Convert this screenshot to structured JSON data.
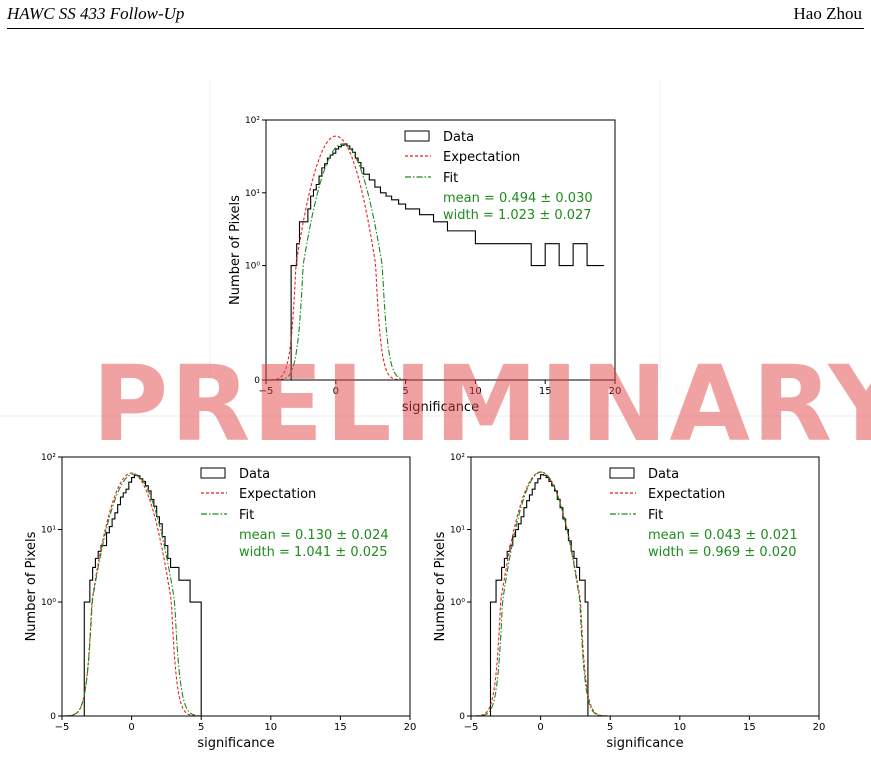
{
  "header": {
    "title": "HAWC SS 433 Follow-Up",
    "author": "Hao Zhou"
  },
  "watermark": "PRELIMINARY",
  "colors": {
    "data": "#000000",
    "expectation": "#e8201c",
    "fit": "#1a8a1a",
    "stats": "#1e8c1e"
  },
  "chart_data": [
    {
      "type": "histogram",
      "xlabel": "significance",
      "ylabel": "Number of Pixels",
      "xlim": [
        -5,
        20
      ],
      "ylim": [
        0,
        100
      ],
      "yscale": "symlog",
      "xticks": [
        "−5",
        "0",
        "5",
        "10",
        "15",
        "20"
      ],
      "yticks": [
        "0",
        "10⁰",
        "10¹",
        "10²"
      ],
      "legend": [
        "Data",
        "Expectation",
        "Fit"
      ],
      "legend_position": "upper-right",
      "stats": [
        "mean = 0.494 ± 0.030",
        "width = 1.023 ± 0.027"
      ],
      "expectation": {
        "mean": 0,
        "width": 1,
        "peak": 60
      },
      "fit": {
        "mean": 0.494,
        "width": 1.023,
        "peak": 47
      },
      "data_points": [
        [
          -3.4,
          0
        ],
        [
          -3.2,
          1
        ],
        [
          -3.0,
          1
        ],
        [
          -2.8,
          2
        ],
        [
          -2.6,
          4
        ],
        [
          -2.4,
          4
        ],
        [
          -2.2,
          4
        ],
        [
          -2.0,
          6
        ],
        [
          -1.8,
          9
        ],
        [
          -1.6,
          11
        ],
        [
          -1.4,
          13
        ],
        [
          -1.2,
          17
        ],
        [
          -1.0,
          22
        ],
        [
          -0.8,
          25
        ],
        [
          -0.6,
          30
        ],
        [
          -0.4,
          33
        ],
        [
          -0.2,
          35
        ],
        [
          0.0,
          40
        ],
        [
          0.2,
          43
        ],
        [
          0.4,
          45
        ],
        [
          0.6,
          47
        ],
        [
          0.8,
          44
        ],
        [
          1.0,
          40
        ],
        [
          1.2,
          36
        ],
        [
          1.4,
          30
        ],
        [
          1.6,
          26
        ],
        [
          1.8,
          22
        ],
        [
          2.0,
          18
        ],
        [
          2.4,
          15
        ],
        [
          2.8,
          12
        ],
        [
          3.2,
          10
        ],
        [
          3.6,
          9
        ],
        [
          4.0,
          8
        ],
        [
          4.5,
          7
        ],
        [
          5.0,
          6
        ],
        [
          6.0,
          5
        ],
        [
          7.0,
          4
        ],
        [
          8.0,
          3
        ],
        [
          9.0,
          3
        ],
        [
          10.0,
          2
        ],
        [
          11.0,
          2
        ],
        [
          12.0,
          2
        ],
        [
          13.0,
          2
        ],
        [
          14.0,
          1
        ],
        [
          15.0,
          2
        ],
        [
          16.0,
          1
        ],
        [
          17.0,
          2
        ],
        [
          18.0,
          1
        ],
        [
          19.0,
          1
        ]
      ]
    },
    {
      "type": "histogram",
      "xlabel": "significance",
      "ylabel": "Number of Pixels",
      "xlim": [
        -5,
        20
      ],
      "ylim": [
        0,
        100
      ],
      "yscale": "symlog",
      "xticks": [
        "−5",
        "0",
        "5",
        "10",
        "15",
        "20"
      ],
      "yticks": [
        "0",
        "10⁰",
        "10¹",
        "10²"
      ],
      "legend": [
        "Data",
        "Expectation",
        "Fit"
      ],
      "legend_position": "upper-right",
      "stats": [
        "mean = 0.130 ± 0.024",
        "width = 1.041 ± 0.025"
      ],
      "expectation": {
        "mean": 0,
        "width": 1,
        "peak": 60
      },
      "fit": {
        "mean": 0.13,
        "width": 1.041,
        "peak": 58
      },
      "data_points": [
        [
          -3.6,
          0
        ],
        [
          -3.4,
          1
        ],
        [
          -3.2,
          1
        ],
        [
          -3.0,
          2
        ],
        [
          -2.8,
          3
        ],
        [
          -2.6,
          4
        ],
        [
          -2.4,
          5
        ],
        [
          -2.2,
          6
        ],
        [
          -2.0,
          6
        ],
        [
          -1.8,
          9
        ],
        [
          -1.6,
          11
        ],
        [
          -1.4,
          14
        ],
        [
          -1.2,
          17
        ],
        [
          -1.0,
          22
        ],
        [
          -0.8,
          28
        ],
        [
          -0.6,
          32
        ],
        [
          -0.4,
          36
        ],
        [
          -0.2,
          45
        ],
        [
          0.0,
          52
        ],
        [
          0.2,
          56
        ],
        [
          0.4,
          55
        ],
        [
          0.6,
          50
        ],
        [
          0.8,
          46
        ],
        [
          1.0,
          40
        ],
        [
          1.2,
          34
        ],
        [
          1.4,
          26
        ],
        [
          1.6,
          21
        ],
        [
          1.8,
          15
        ],
        [
          2.0,
          12
        ],
        [
          2.2,
          8
        ],
        [
          2.4,
          6
        ],
        [
          2.6,
          4
        ],
        [
          2.8,
          3
        ],
        [
          3.0,
          3
        ],
        [
          3.4,
          2
        ],
        [
          3.8,
          2
        ],
        [
          4.2,
          1
        ],
        [
          4.6,
          1
        ],
        [
          5.0,
          0
        ]
      ]
    },
    {
      "type": "histogram",
      "xlabel": "significance",
      "ylabel": "Number of Pixels",
      "xlim": [
        -5,
        20
      ],
      "ylim": [
        0,
        100
      ],
      "yscale": "symlog",
      "xticks": [
        "−5",
        "0",
        "5",
        "10",
        "15",
        "20"
      ],
      "yticks": [
        "0",
        "10⁰",
        "10¹",
        "10²"
      ],
      "legend": [
        "Data",
        "Expectation",
        "Fit"
      ],
      "legend_position": "upper-right",
      "stats": [
        "mean = 0.043 ± 0.021",
        "width = 0.969 ± 0.020"
      ],
      "expectation": {
        "mean": 0,
        "width": 1,
        "peak": 62
      },
      "fit": {
        "mean": 0.043,
        "width": 0.969,
        "peak": 62
      },
      "data_points": [
        [
          -3.8,
          0
        ],
        [
          -3.6,
          1
        ],
        [
          -3.4,
          1
        ],
        [
          -3.2,
          2
        ],
        [
          -3.0,
          2
        ],
        [
          -2.8,
          3
        ],
        [
          -2.6,
          4
        ],
        [
          -2.4,
          5
        ],
        [
          -2.2,
          6
        ],
        [
          -2.0,
          8
        ],
        [
          -1.8,
          10
        ],
        [
          -1.6,
          12
        ],
        [
          -1.4,
          15
        ],
        [
          -1.2,
          20
        ],
        [
          -1.0,
          25
        ],
        [
          -0.8,
          30
        ],
        [
          -0.6,
          36
        ],
        [
          -0.4,
          44
        ],
        [
          -0.2,
          50
        ],
        [
          0.0,
          57
        ],
        [
          0.2,
          56
        ],
        [
          0.4,
          52
        ],
        [
          0.6,
          46
        ],
        [
          0.8,
          40
        ],
        [
          1.0,
          34
        ],
        [
          1.2,
          26
        ],
        [
          1.4,
          20
        ],
        [
          1.6,
          14
        ],
        [
          1.8,
          10
        ],
        [
          2.0,
          7
        ],
        [
          2.2,
          5
        ],
        [
          2.4,
          4
        ],
        [
          2.6,
          3
        ],
        [
          2.8,
          2
        ],
        [
          3.0,
          2
        ],
        [
          3.2,
          1
        ],
        [
          3.4,
          0
        ]
      ]
    }
  ]
}
